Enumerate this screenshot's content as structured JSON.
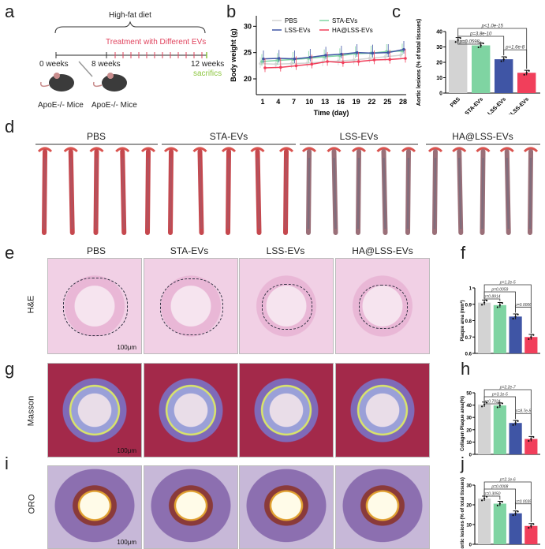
{
  "panels": {
    "a": "a",
    "b": "b",
    "c": "c",
    "d": "d",
    "e": "e",
    "f": "f",
    "g": "g",
    "h": "h",
    "i": "i",
    "j": "j"
  },
  "timeline": {
    "diet": "High-fat diet",
    "treatment": "Treatment with Different EVs",
    "w0": "0 weeks",
    "w8": "8 weeks",
    "w12": "12 weeks",
    "sacrifice": "sacrifics",
    "mouse1": "ApoE-/- Mice",
    "mouse2": "ApoE-/- Mice"
  },
  "groups": [
    "PBS",
    "STA-EVs",
    "LSS-EVs",
    "HA@LSS-EVs"
  ],
  "colors": {
    "PBS": "#d3d3d3",
    "STA-EVs": "#7fd4a2",
    "LSS-EVs": "#3f55a5",
    "HA@LSS-EVs": "#f13f5b"
  },
  "rows": {
    "he": "H&E",
    "masson": "Masson",
    "oro": "ORO",
    "scale": "100μm"
  },
  "chart_data": [
    {
      "type": "line",
      "id": "b",
      "xlabel": "Time (day)",
      "ylabel": "Body weight (g)",
      "ylim": [
        17,
        32
      ],
      "yticks": [
        20,
        25,
        30
      ],
      "x": [
        1,
        4,
        7,
        10,
        13,
        16,
        19,
        22,
        25,
        28
      ],
      "legend": "top",
      "series": [
        {
          "name": "PBS",
          "values": [
            22.9,
            22.8,
            22.9,
            23.0,
            23.2,
            23.4,
            23.6,
            23.9,
            24.2,
            24.5
          ]
        },
        {
          "name": "STA-EVs",
          "values": [
            23.3,
            23.5,
            23.7,
            23.9,
            24.2,
            24.4,
            24.8,
            24.9,
            25.2,
            25.3
          ]
        },
        {
          "name": "LSS-EVs",
          "values": [
            23.8,
            23.9,
            23.8,
            24.1,
            24.5,
            24.7,
            25.0,
            24.9,
            25.0,
            25.6
          ]
        },
        {
          "name": "HA@LSS-EVs",
          "values": [
            22.1,
            22.2,
            22.5,
            22.8,
            23.3,
            23.1,
            23.3,
            23.6,
            23.7,
            23.9
          ]
        }
      ]
    },
    {
      "type": "bar",
      "id": "c",
      "ylabel": "Aortic lesions (% of total tissues)",
      "ylim": [
        0,
        40
      ],
      "yticks": [
        0,
        10,
        20,
        30,
        40
      ],
      "categories": [
        "PBS",
        "STA-EVs",
        "LSS-EVs",
        "HA@LSS-EVs"
      ],
      "values": [
        34.5,
        31,
        22,
        13.2
      ],
      "pvalues": [
        {
          "a": 0,
          "b": 1,
          "p": "p=0.0598"
        },
        {
          "a": 0,
          "b": 2,
          "p": "p=3.8e-10"
        },
        {
          "a": 0,
          "b": 3,
          "p": "p<1.0e-15"
        },
        {
          "a": 2,
          "b": 3,
          "p": "p=1.6e-8"
        }
      ]
    },
    {
      "type": "bar",
      "id": "f",
      "ylabel": "Plaque area (mm²)",
      "ylim": [
        0.6,
        1.0
      ],
      "yticks": [
        0.6,
        0.7,
        0.8,
        0.9,
        1.0
      ],
      "categories": [
        "PBS",
        "STA-EVs",
        "LSS-EVs",
        "HA@LSS-EVs"
      ],
      "values": [
        0.91,
        0.895,
        0.825,
        0.7
      ],
      "pvalues": [
        {
          "a": 0,
          "b": 1,
          "p": "p=0.8914"
        },
        {
          "a": 0,
          "b": 2,
          "p": "p=0.0059"
        },
        {
          "a": 0,
          "b": 3,
          "p": "p=1.2e-5"
        },
        {
          "a": 2,
          "b": 3,
          "p": "p=0.0006"
        }
      ]
    },
    {
      "type": "bar",
      "id": "h",
      "ylabel": "Collagen Plaque area(%)",
      "ylim": [
        0,
        50
      ],
      "yticks": [
        0,
        10,
        20,
        30,
        40,
        50
      ],
      "categories": [
        "PBS",
        "STA-EVs",
        "LSS-EVs",
        "HA@LSS-EVs"
      ],
      "values": [
        40.5,
        39.8,
        25.5,
        12.5
      ],
      "pvalues": [
        {
          "a": 0,
          "b": 1,
          "p": "p=0.7024"
        },
        {
          "a": 0,
          "b": 2,
          "p": "p=3.1e-5"
        },
        {
          "a": 0,
          "b": 3,
          "p": "p=2.2e-7"
        },
        {
          "a": 2,
          "b": 3,
          "p": "p=8.7e-5"
        }
      ]
    },
    {
      "type": "bar",
      "id": "j",
      "ylabel": "Aortic lesions (% of total tissues)",
      "ylim": [
        0,
        30
      ],
      "yticks": [
        0,
        10,
        20,
        30
      ],
      "categories": [
        "PBS",
        "STA-EVs",
        "LSS-EVs",
        "HA@LSS-EVs"
      ],
      "values": [
        23.2,
        20.6,
        15.7,
        9.3
      ],
      "pvalues": [
        {
          "a": 0,
          "b": 1,
          "p": "p=0.3050"
        },
        {
          "a": 0,
          "b": 2,
          "p": "p=0.0008"
        },
        {
          "a": 0,
          "b": 3,
          "p": "p=2.1e-6"
        },
        {
          "a": 2,
          "b": 3,
          "p": "p=0.0035"
        }
      ]
    }
  ]
}
